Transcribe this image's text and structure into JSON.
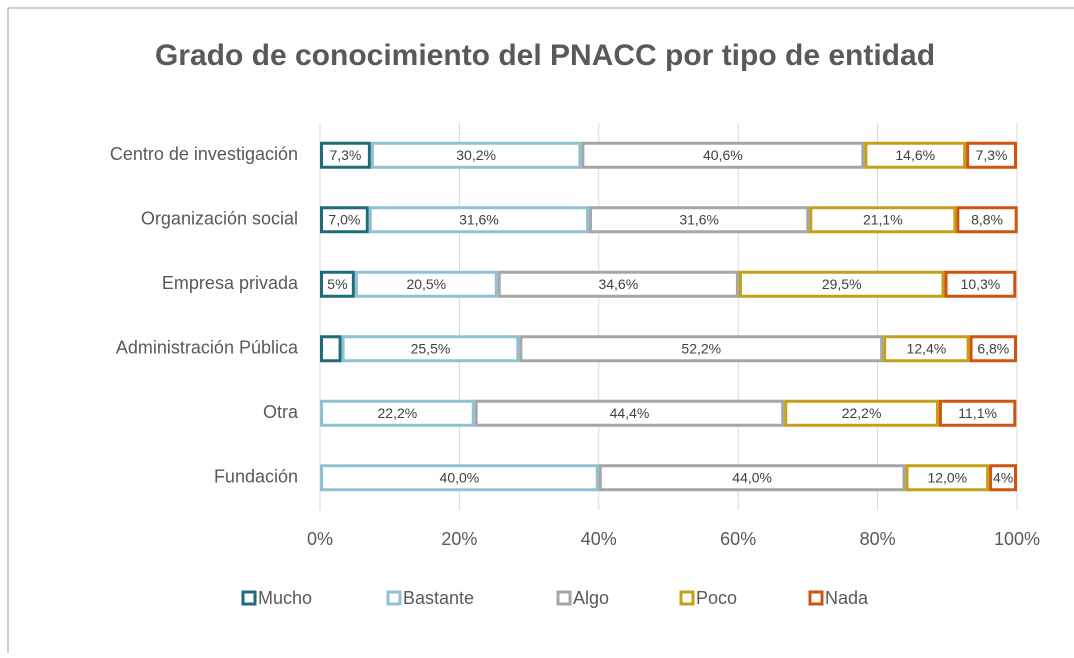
{
  "chart_data": {
    "type": "stacked_barh",
    "title": "Grado de conocimiento del PNACC por tipo de entidad",
    "categories": [
      "Centro de investigación",
      "Organización social",
      "Empresa privada",
      "Administración Pública",
      "Otra",
      "Fundación"
    ],
    "series": [
      {
        "name": "Mucho",
        "color": "#1f6b7a",
        "values": [
          7.3,
          7.0,
          5,
          3.1,
          0,
          0
        ],
        "value_labels": [
          "7,3%",
          "7,0%",
          "5%",
          null,
          null,
          null
        ]
      },
      {
        "name": "Bastante",
        "color": "#8fc1d4",
        "values": [
          30.2,
          31.6,
          20.5,
          25.5,
          22.2,
          40.0
        ],
        "value_labels": [
          "30,2%",
          "31,6%",
          "20,5%",
          "25,5%",
          "22,2%",
          "40,0%"
        ]
      },
      {
        "name": "Algo",
        "color": "#a6a6a6",
        "values": [
          40.6,
          31.6,
          34.6,
          52.2,
          44.4,
          44.0
        ],
        "value_labels": [
          "40,6%",
          "31,6%",
          "34,6%",
          "52,2%",
          "44,4%",
          "44,0%"
        ]
      },
      {
        "name": "Poco",
        "color": "#c4a017",
        "values": [
          14.6,
          21.1,
          29.5,
          12.4,
          22.2,
          12.0
        ],
        "value_labels": [
          "14,6%",
          "21,1%",
          "29,5%",
          "12,4%",
          "22,2%",
          "12,0%"
        ]
      },
      {
        "name": "Nada",
        "color": "#d0530f",
        "values": [
          7.3,
          8.8,
          10.3,
          6.8,
          11.1,
          4
        ],
        "value_labels": [
          "7,3%",
          "8,8%",
          "10,3%",
          "6,8%",
          "11,1%",
          "4%"
        ]
      }
    ],
    "xlim": [
      0,
      100
    ],
    "xticks": [
      {
        "value": 0,
        "label": "0%"
      },
      {
        "value": 20,
        "label": "20%"
      },
      {
        "value": 40,
        "label": "40%"
      },
      {
        "value": 60,
        "label": "60%"
      },
      {
        "value": 80,
        "label": "80%"
      },
      {
        "value": 100,
        "label": "100%"
      }
    ],
    "grid": true,
    "legend": "bottom"
  }
}
